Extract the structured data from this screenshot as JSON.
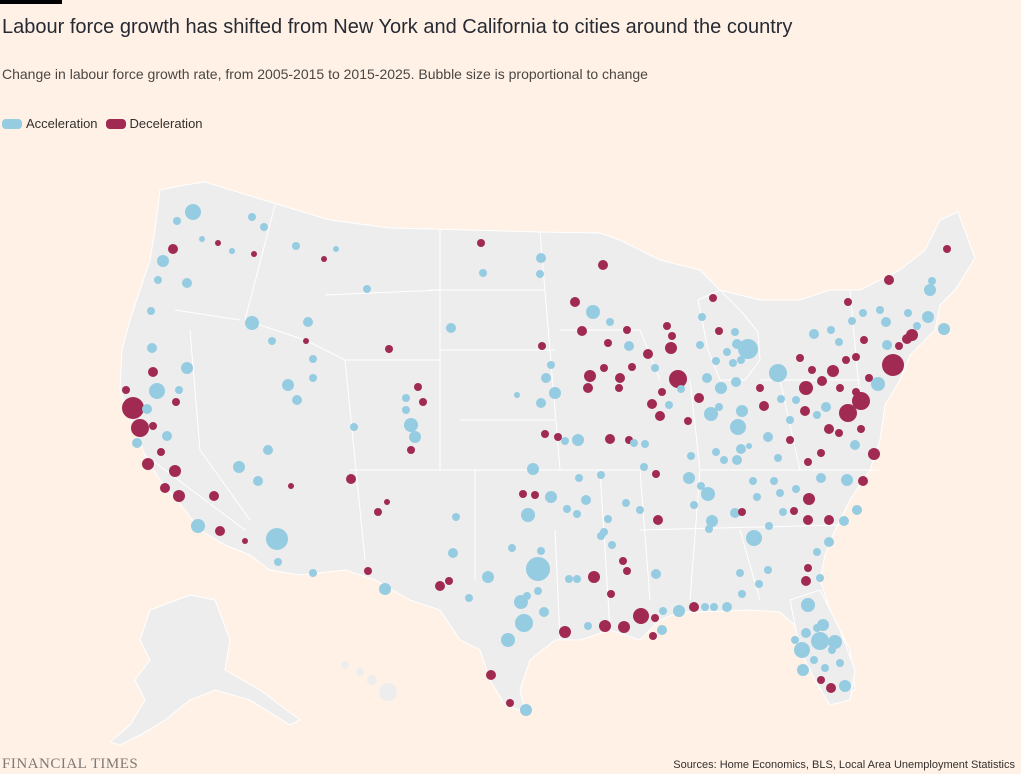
{
  "title": "Labour force growth has shifted from New York and California to cities around the country",
  "subtitle": "Change in labour force growth rate, from 2005-2015 to 2015-2025. Bubble size is proportional to change",
  "legend": [
    {
      "label": "Acceleration",
      "color": "#96CCE1"
    },
    {
      "label": "Deceleration",
      "color": "#A12A53"
    }
  ],
  "brand": "FINANCIAL TIMES",
  "source": "Sources: Home Economics, BLS, Local Area Unemployment Statistics",
  "colors": {
    "background": "#FFF1E5",
    "land": "#EDEDED",
    "border": "#FFFFFF",
    "acceleration": "#96CCE1",
    "deceleration": "#A12A53"
  }
}
